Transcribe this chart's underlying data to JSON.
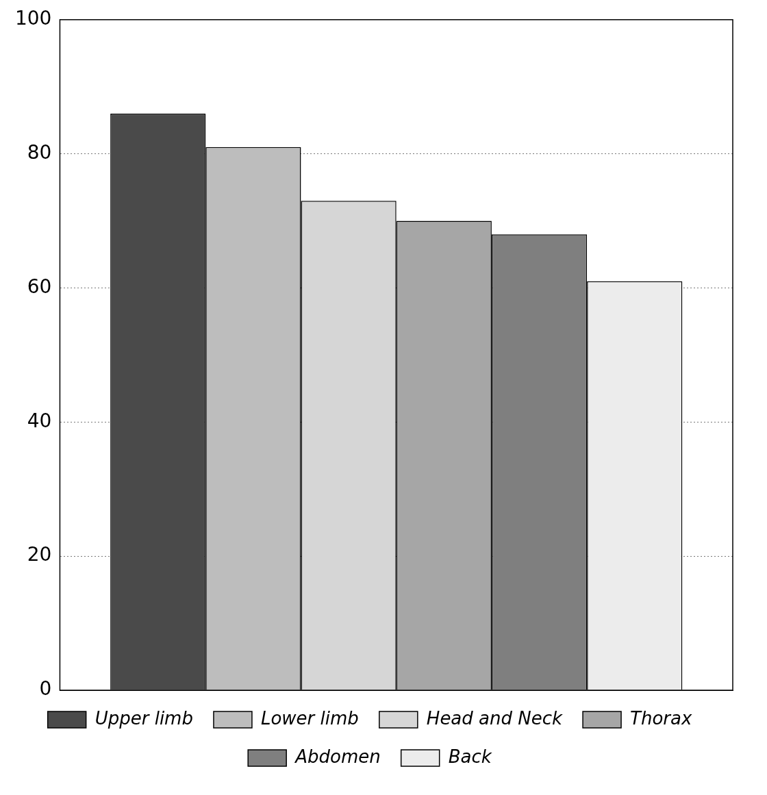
{
  "chart_data": {
    "type": "bar",
    "categories": [
      null
    ],
    "series": [
      {
        "name": "Upper limb",
        "color": "#4a4a4a",
        "values": [
          86
        ]
      },
      {
        "name": "Lower limb",
        "color": "#bdbdbd",
        "values": [
          81
        ]
      },
      {
        "name": "Head and Neck",
        "color": "#d6d6d6",
        "values": [
          73
        ]
      },
      {
        "name": "Thorax",
        "color": "#a6a6a6",
        "values": [
          70
        ]
      },
      {
        "name": "Abdomen",
        "color": "#7f7f7f",
        "values": [
          68
        ]
      },
      {
        "name": "Back",
        "color": "#ececec",
        "values": [
          61
        ]
      }
    ],
    "ylim": [
      0,
      100
    ],
    "yticks": [
      0,
      20,
      40,
      60,
      80,
      100
    ],
    "grid": "y",
    "legend": "bottom",
    "tick_labels": "y"
  }
}
